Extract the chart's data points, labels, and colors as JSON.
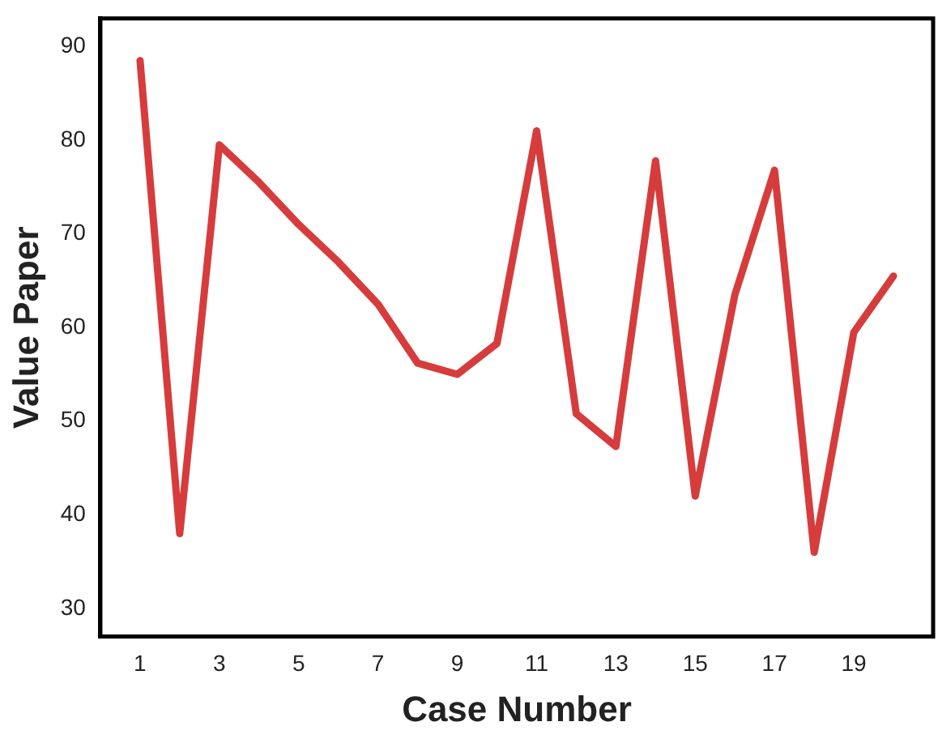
{
  "chart_data": {
    "type": "line",
    "xlabel": "Case Number",
    "ylabel": "Value Paper",
    "x": [
      1,
      2,
      3,
      4,
      5,
      6,
      7,
      8,
      9,
      10,
      11,
      12,
      13,
      14,
      15,
      16,
      17,
      18,
      19,
      20
    ],
    "series": [
      {
        "color": "#d63c3c",
        "values": [
          88.5,
          38,
          79.5,
          75.5,
          71,
          67,
          62.5,
          56.2,
          55,
          58.3,
          81,
          50.8,
          47.3,
          77.8,
          42,
          63.5,
          76.8,
          36,
          59.5,
          65.5
        ]
      }
    ],
    "xlim": [
      0,
      21
    ],
    "xticks": [
      1,
      3,
      5,
      7,
      9,
      11,
      13,
      15,
      17,
      19
    ],
    "ylim": [
      27,
      93
    ],
    "yticks": [
      30,
      40,
      50,
      60,
      70,
      80,
      90
    ],
    "grid": false,
    "legend": false,
    "marker": "none",
    "line_style": "solid"
  }
}
